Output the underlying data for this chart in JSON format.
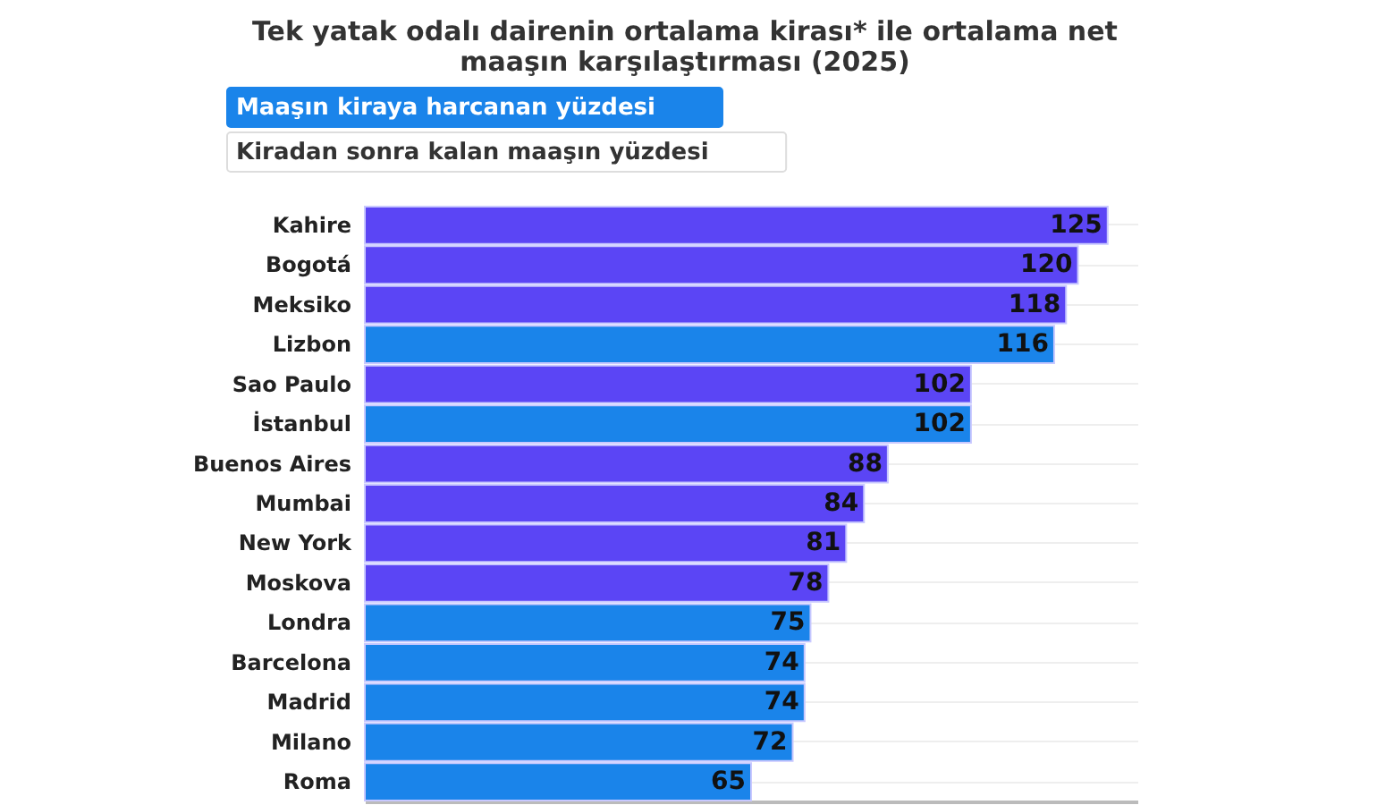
{
  "chart_data": {
    "type": "bar",
    "orientation": "horizontal",
    "title": [
      "Tek yatak odalı dairenin ortalama kirası* ile ortalama net",
      "maaşın karşılaştırması (2025)"
    ],
    "annotations": [
      "Maaşın kiraya harcanan yüzdesi",
      "Kiradan sonra kalan maaşın yüzdesi"
    ],
    "categories": [
      "Kahire",
      "Bogotá",
      "Meksiko",
      "Lizbon",
      "Sao Paulo",
      "İstanbul",
      "Buenos Aires",
      "Mumbai",
      "New York",
      "Moskova",
      "Londra",
      "Barcelona",
      "Madrid",
      "Milano",
      "Roma"
    ],
    "values": [
      125,
      120,
      118,
      116,
      102,
      102,
      88,
      84,
      81,
      78,
      75,
      74,
      74,
      72,
      65
    ],
    "colors": [
      "#5b45f5",
      "#5b45f5",
      "#5b45f5",
      "#1a84ea",
      "#5b45f5",
      "#1a84ea",
      "#5b45f5",
      "#5b45f5",
      "#5b45f5",
      "#5b45f5",
      "#1a84ea",
      "#1a84ea",
      "#1a84ea",
      "#1a84ea",
      "#1a84ea"
    ],
    "data_labels": true,
    "grid": "y",
    "tick_labels": "y"
  }
}
